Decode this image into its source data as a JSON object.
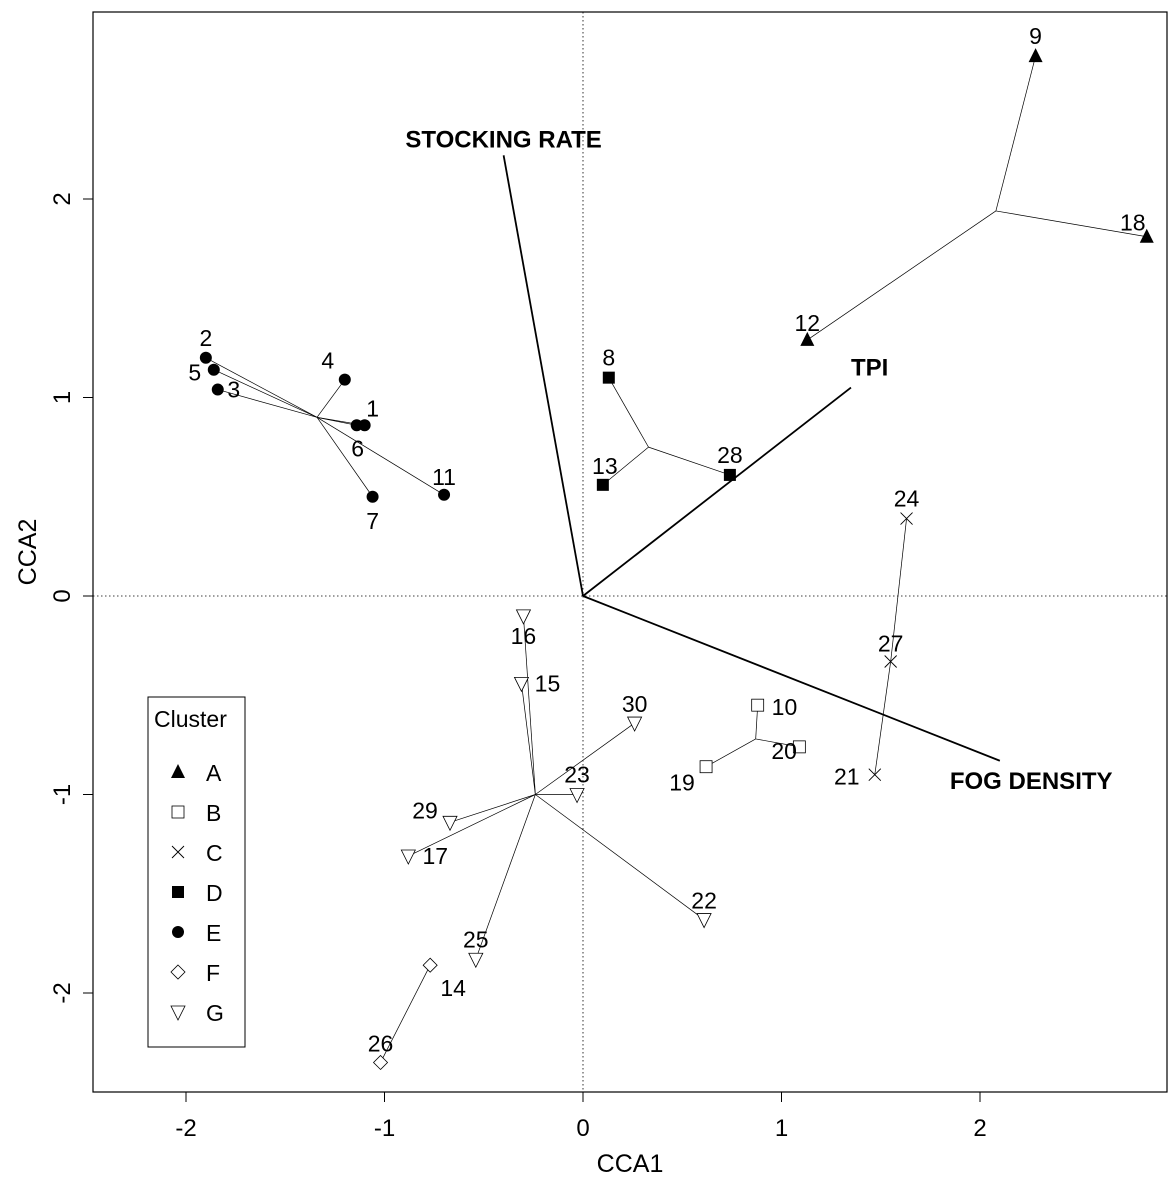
{
  "chart_data": {
    "type": "scatter",
    "title": "",
    "xlabel": "CCA1",
    "ylabel": "CCA2",
    "xlim": [
      -2.47,
      2.93
    ],
    "ylim": [
      -2.5,
      2.93
    ],
    "xticks": [
      -2,
      -1,
      0,
      1,
      2
    ],
    "yticks": [
      -2,
      -1,
      0,
      1,
      2
    ],
    "xtick_labels": [
      "-2",
      "-1",
      "0",
      "1",
      "2"
    ],
    "ytick_labels": [
      "-2",
      "-1",
      "0",
      "1",
      "2"
    ],
    "grid": false,
    "reference_lines": {
      "x": 0,
      "y": 0,
      "style": "dotted"
    },
    "legend": {
      "title": "Cluster",
      "placement": "bottom-left",
      "entries": [
        {
          "name": "A",
          "symbol": "triangle-filled"
        },
        {
          "name": "B",
          "symbol": "square-open"
        },
        {
          "name": "C",
          "symbol": "cross"
        },
        {
          "name": "D",
          "symbol": "square-filled"
        },
        {
          "name": "E",
          "symbol": "circle-filled"
        },
        {
          "name": "F",
          "symbol": "diamond-open"
        },
        {
          "name": "G",
          "symbol": "triangle-down-open"
        }
      ]
    },
    "vectors": [
      {
        "name": "STOCKING RATE",
        "x": -0.4,
        "y": 2.22
      },
      {
        "name": "TPI",
        "x": 1.35,
        "y": 1.05
      },
      {
        "name": "FOG DENSITY",
        "x": 2.1,
        "y": -0.83
      }
    ],
    "clusters": [
      {
        "name": "A",
        "centroid": [
          2.08,
          1.94
        ],
        "points": [
          {
            "id": "9",
            "x": 2.28,
            "y": 2.72
          },
          {
            "id": "18",
            "x": 2.84,
            "y": 1.81
          },
          {
            "id": "12",
            "x": 1.13,
            "y": 1.29
          }
        ]
      },
      {
        "name": "B",
        "centroid": [
          0.87,
          -0.72
        ],
        "points": [
          {
            "id": "10",
            "x": 0.88,
            "y": -0.55
          },
          {
            "id": "20",
            "x": 1.09,
            "y": -0.76
          },
          {
            "id": "19",
            "x": 0.62,
            "y": -0.86
          }
        ]
      },
      {
        "name": "C",
        "centroid": [
          1.55,
          -0.33
        ],
        "points": [
          {
            "id": "24",
            "x": 1.63,
            "y": 0.39
          },
          {
            "id": "27",
            "x": 1.55,
            "y": -0.33
          },
          {
            "id": "21",
            "x": 1.47,
            "y": -0.9
          }
        ]
      },
      {
        "name": "D",
        "centroid": [
          0.33,
          0.75
        ],
        "points": [
          {
            "id": "8",
            "x": 0.13,
            "y": 1.1
          },
          {
            "id": "13",
            "x": 0.1,
            "y": 0.56
          },
          {
            "id": "28",
            "x": 0.74,
            "y": 0.61
          }
        ]
      },
      {
        "name": "E",
        "centroid": [
          -1.34,
          0.9
        ],
        "points": [
          {
            "id": "2",
            "x": -1.9,
            "y": 1.2
          },
          {
            "id": "5",
            "x": -1.86,
            "y": 1.14
          },
          {
            "id": "3",
            "x": -1.84,
            "y": 1.04
          },
          {
            "id": "4",
            "x": -1.2,
            "y": 1.09
          },
          {
            "id": "1",
            "x": -1.1,
            "y": 0.86
          },
          {
            "id": "6",
            "x": -1.14,
            "y": 0.86
          },
          {
            "id": "7",
            "x": -1.06,
            "y": 0.5
          },
          {
            "id": "11",
            "x": -0.7,
            "y": 0.51
          }
        ]
      },
      {
        "name": "F",
        "centroid": [
          -0.77,
          -1.86
        ],
        "points": [
          {
            "id": "14",
            "x": -0.77,
            "y": -1.86
          },
          {
            "id": "26",
            "x": -1.02,
            "y": -2.35
          }
        ]
      },
      {
        "name": "G",
        "centroid": [
          -0.24,
          -1.0
        ],
        "points": [
          {
            "id": "16",
            "x": -0.3,
            "y": -0.1
          },
          {
            "id": "15",
            "x": -0.31,
            "y": -0.44
          },
          {
            "id": "30",
            "x": 0.26,
            "y": -0.64
          },
          {
            "id": "23",
            "x": -0.03,
            "y": -1.0
          },
          {
            "id": "29",
            "x": -0.67,
            "y": -1.14
          },
          {
            "id": "17",
            "x": -0.88,
            "y": -1.31
          },
          {
            "id": "22",
            "x": 0.61,
            "y": -1.63
          },
          {
            "id": "25",
            "x": -0.54,
            "y": -1.83
          }
        ]
      }
    ]
  }
}
